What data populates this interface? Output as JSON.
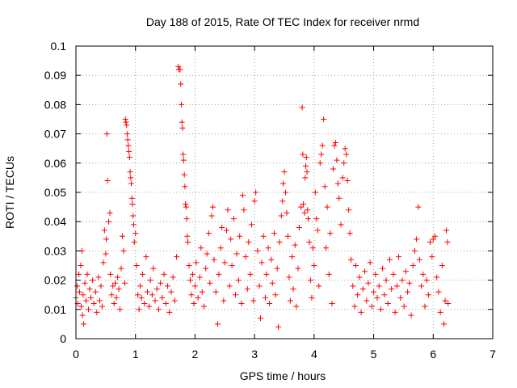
{
  "chart_data": {
    "type": "scatter",
    "title": "Day 188 of 2015, Rate Of TEC Index for receiver nrmd",
    "xlabel": "GPS time / hours",
    "ylabel": "ROTI / TECUs",
    "xlim": [
      0,
      7
    ],
    "ylim": [
      0,
      0.1
    ],
    "x_ticks": [
      "0",
      "1",
      "2",
      "3",
      "4",
      "5",
      "6",
      "7"
    ],
    "y_ticks": [
      "0",
      "0.01",
      "0.02",
      "0.03",
      "0.04",
      "0.05",
      "0.06",
      "0.07",
      "0.08",
      "0.09",
      "0.1"
    ],
    "grid": true,
    "legend": "none",
    "marker": "+",
    "color": "#ff0000",
    "series": [
      {
        "values_note_free": true,
        "points": [
          [
            0.0,
            0.014
          ],
          [
            0.02,
            0.018
          ],
          [
            0.03,
            0.012
          ],
          [
            0.05,
            0.022
          ],
          [
            0.06,
            0.016
          ],
          [
            0.08,
            0.025
          ],
          [
            0.09,
            0.011
          ],
          [
            0.1,
            0.03
          ],
          [
            0.11,
            0.008
          ],
          [
            0.12,
            0.015
          ],
          [
            0.13,
            0.005
          ],
          [
            0.15,
            0.019
          ],
          [
            0.17,
            0.013
          ],
          [
            0.19,
            0.022
          ],
          [
            0.21,
            0.01
          ],
          [
            0.23,
            0.017
          ],
          [
            0.25,
            0.014
          ],
          [
            0.28,
            0.02
          ],
          [
            0.3,
            0.012
          ],
          [
            0.33,
            0.016
          ],
          [
            0.35,
            0.009
          ],
          [
            0.38,
            0.021
          ],
          [
            0.4,
            0.013
          ],
          [
            0.42,
            0.018
          ],
          [
            0.44,
            0.011
          ],
          [
            0.46,
            0.026
          ],
          [
            0.48,
            0.037
          ],
          [
            0.5,
            0.029
          ],
          [
            0.51,
            0.034
          ],
          [
            0.52,
            0.07
          ],
          [
            0.53,
            0.054
          ],
          [
            0.55,
            0.04
          ],
          [
            0.57,
            0.043
          ],
          [
            0.58,
            0.022
          ],
          [
            0.6,
            0.015
          ],
          [
            0.62,
            0.018
          ],
          [
            0.64,
            0.012
          ],
          [
            0.66,
            0.019
          ],
          [
            0.68,
            0.014
          ],
          [
            0.7,
            0.021
          ],
          [
            0.72,
            0.017
          ],
          [
            0.74,
            0.01
          ],
          [
            0.76,
            0.024
          ],
          [
            0.78,
            0.035
          ],
          [
            0.8,
            0.03
          ],
          [
            0.82,
            0.019
          ],
          [
            0.83,
            0.075
          ],
          [
            0.84,
            0.074
          ],
          [
            0.85,
            0.073
          ],
          [
            0.86,
            0.07
          ],
          [
            0.87,
            0.068
          ],
          [
            0.88,
            0.066
          ],
          [
            0.89,
            0.064
          ],
          [
            0.9,
            0.062
          ],
          [
            0.91,
            0.057
          ],
          [
            0.92,
            0.055
          ],
          [
            0.93,
            0.053
          ],
          [
            0.94,
            0.048
          ],
          [
            0.95,
            0.046
          ],
          [
            0.96,
            0.042
          ],
          [
            0.97,
            0.039
          ],
          [
            0.98,
            0.033
          ],
          [
            1.0,
            0.036
          ],
          [
            1.02,
            0.025
          ],
          [
            1.04,
            0.015
          ],
          [
            1.06,
            0.01
          ],
          [
            1.08,
            0.018
          ],
          [
            1.1,
            0.014
          ],
          [
            1.12,
            0.022
          ],
          [
            1.15,
            0.012
          ],
          [
            1.18,
            0.028
          ],
          [
            1.2,
            0.016
          ],
          [
            1.23,
            0.011
          ],
          [
            1.25,
            0.02
          ],
          [
            1.28,
            0.015
          ],
          [
            1.3,
            0.024
          ],
          [
            1.33,
            0.013
          ],
          [
            1.36,
            0.017
          ],
          [
            1.39,
            0.01
          ],
          [
            1.42,
            0.019
          ],
          [
            1.45,
            0.014
          ],
          [
            1.48,
            0.022
          ],
          [
            1.51,
            0.012
          ],
          [
            1.54,
            0.018
          ],
          [
            1.57,
            0.009
          ],
          [
            1.6,
            0.016
          ],
          [
            1.63,
            0.021
          ],
          [
            1.66,
            0.013
          ],
          [
            1.69,
            0.028
          ],
          [
            1.72,
            0.093
          ],
          [
            1.73,
            0.092
          ],
          [
            1.75,
            0.092
          ],
          [
            1.76,
            0.087
          ],
          [
            1.77,
            0.08
          ],
          [
            1.78,
            0.074
          ],
          [
            1.79,
            0.072
          ],
          [
            1.8,
            0.063
          ],
          [
            1.81,
            0.061
          ],
          [
            1.82,
            0.056
          ],
          [
            1.83,
            0.052
          ],
          [
            1.84,
            0.046
          ],
          [
            1.85,
            0.045
          ],
          [
            1.86,
            0.041
          ],
          [
            1.87,
            0.035
          ],
          [
            1.88,
            0.033
          ],
          [
            1.9,
            0.025
          ],
          [
            1.92,
            0.02
          ],
          [
            1.94,
            0.015
          ],
          [
            1.96,
            0.022
          ],
          [
            1.98,
            0.012
          ],
          [
            2.0,
            0.018
          ],
          [
            2.02,
            0.026
          ],
          [
            2.05,
            0.014
          ],
          [
            2.08,
            0.021
          ],
          [
            2.1,
            0.031
          ],
          [
            2.12,
            0.016
          ],
          [
            2.15,
            0.011
          ],
          [
            2.18,
            0.024
          ],
          [
            2.2,
            0.029
          ],
          [
            2.23,
            0.036
          ],
          [
            2.25,
            0.019
          ],
          [
            2.28,
            0.042
          ],
          [
            2.3,
            0.045
          ],
          [
            2.32,
            0.027
          ],
          [
            2.35,
            0.016
          ],
          [
            2.38,
            0.005
          ],
          [
            2.4,
            0.022
          ],
          [
            2.43,
            0.031
          ],
          [
            2.45,
            0.038
          ],
          [
            2.48,
            0.013
          ],
          [
            2.5,
            0.026
          ],
          [
            2.53,
            0.037
          ],
          [
            2.55,
            0.044
          ],
          [
            2.58,
            0.018
          ],
          [
            2.6,
            0.034
          ],
          [
            2.62,
            0.025
          ],
          [
            2.65,
            0.041
          ],
          [
            2.68,
            0.015
          ],
          [
            2.7,
            0.029
          ],
          [
            2.73,
            0.02
          ],
          [
            2.75,
            0.035
          ],
          [
            2.78,
            0.012
          ],
          [
            2.8,
            0.049
          ],
          [
            2.82,
            0.044
          ],
          [
            2.85,
            0.028
          ],
          [
            2.88,
            0.017
          ],
          [
            2.9,
            0.033
          ],
          [
            2.93,
            0.022
          ],
          [
            2.95,
            0.039
          ],
          [
            2.98,
            0.013
          ],
          [
            3.0,
            0.047
          ],
          [
            3.02,
            0.05
          ],
          [
            3.05,
            0.03
          ],
          [
            3.08,
            0.018
          ],
          [
            3.1,
            0.007
          ],
          [
            3.12,
            0.026
          ],
          [
            3.15,
            0.035
          ],
          [
            3.18,
            0.014
          ],
          [
            3.2,
            0.022
          ],
          [
            3.23,
            0.031
          ],
          [
            3.25,
            0.012
          ],
          [
            3.28,
            0.027
          ],
          [
            3.3,
            0.019
          ],
          [
            3.33,
            0.036
          ],
          [
            3.35,
            0.015
          ],
          [
            3.38,
            0.024
          ],
          [
            3.4,
            0.004
          ],
          [
            3.42,
            0.033
          ],
          [
            3.45,
            0.042
          ],
          [
            3.47,
            0.047
          ],
          [
            3.48,
            0.053
          ],
          [
            3.5,
            0.057
          ],
          [
            3.52,
            0.05
          ],
          [
            3.54,
            0.043
          ],
          [
            3.56,
            0.035
          ],
          [
            3.58,
            0.021
          ],
          [
            3.6,
            0.013
          ],
          [
            3.63,
            0.028
          ],
          [
            3.65,
            0.017
          ],
          [
            3.68,
            0.032
          ],
          [
            3.7,
            0.011
          ],
          [
            3.73,
            0.024
          ],
          [
            3.75,
            0.038
          ],
          [
            3.78,
            0.045
          ],
          [
            3.8,
            0.079
          ],
          [
            3.81,
            0.063
          ],
          [
            3.82,
            0.046
          ],
          [
            3.84,
            0.043
          ],
          [
            3.85,
            0.055
          ],
          [
            3.86,
            0.059
          ],
          [
            3.87,
            0.062
          ],
          [
            3.88,
            0.057
          ],
          [
            3.89,
            0.044
          ],
          [
            3.9,
            0.041
          ],
          [
            3.92,
            0.033
          ],
          [
            3.94,
            0.02
          ],
          [
            3.96,
            0.014
          ],
          [
            3.98,
            0.031
          ],
          [
            4.0,
            0.025
          ],
          [
            4.02,
            0.05
          ],
          [
            4.04,
            0.041
          ],
          [
            4.06,
            0.037
          ],
          [
            4.08,
            0.018
          ],
          [
            4.1,
            0.06
          ],
          [
            4.12,
            0.063
          ],
          [
            4.14,
            0.066
          ],
          [
            4.16,
            0.075
          ],
          [
            4.18,
            0.052
          ],
          [
            4.2,
            0.031
          ],
          [
            4.22,
            0.045
          ],
          [
            4.25,
            0.022
          ],
          [
            4.27,
            0.036
          ],
          [
            4.3,
            0.012
          ],
          [
            4.32,
            0.058
          ],
          [
            4.34,
            0.066
          ],
          [
            4.36,
            0.067
          ],
          [
            4.38,
            0.061
          ],
          [
            4.4,
            0.053
          ],
          [
            4.42,
            0.048
          ],
          [
            4.45,
            0.039
          ],
          [
            4.48,
            0.055
          ],
          [
            4.5,
            0.06
          ],
          [
            4.52,
            0.065
          ],
          [
            4.54,
            0.063
          ],
          [
            4.56,
            0.054
          ],
          [
            4.58,
            0.044
          ],
          [
            4.6,
            0.036
          ],
          [
            4.62,
            0.027
          ],
          [
            4.65,
            0.018
          ],
          [
            4.68,
            0.011
          ],
          [
            4.7,
            0.025
          ],
          [
            4.73,
            0.015
          ],
          [
            4.76,
            0.021
          ],
          [
            4.79,
            0.009
          ],
          [
            4.82,
            0.017
          ],
          [
            4.85,
            0.023
          ],
          [
            4.88,
            0.013
          ],
          [
            4.91,
            0.019
          ],
          [
            4.94,
            0.026
          ],
          [
            4.97,
            0.011
          ],
          [
            5.0,
            0.016
          ],
          [
            5.03,
            0.022
          ],
          [
            5.06,
            0.014
          ],
          [
            5.09,
            0.018
          ],
          [
            5.12,
            0.01
          ],
          [
            5.15,
            0.024
          ],
          [
            5.18,
            0.015
          ],
          [
            5.21,
            0.02
          ],
          [
            5.24,
            0.012
          ],
          [
            5.27,
            0.027
          ],
          [
            5.3,
            0.017
          ],
          [
            5.33,
            0.022
          ],
          [
            5.36,
            0.009
          ],
          [
            5.39,
            0.018
          ],
          [
            5.42,
            0.028
          ],
          [
            5.45,
            0.014
          ],
          [
            5.48,
            0.02
          ],
          [
            5.51,
            0.011
          ],
          [
            5.54,
            0.023
          ],
          [
            5.57,
            0.016
          ],
          [
            5.6,
            0.019
          ],
          [
            5.63,
            0.008
          ],
          [
            5.66,
            0.025
          ],
          [
            5.69,
            0.03
          ],
          [
            5.72,
            0.034
          ],
          [
            5.75,
            0.045
          ],
          [
            5.77,
            0.027
          ],
          [
            5.8,
            0.018
          ],
          [
            5.83,
            0.022
          ],
          [
            5.86,
            0.011
          ],
          [
            5.89,
            0.02
          ],
          [
            5.92,
            0.015
          ],
          [
            5.95,
            0.033
          ],
          [
            5.98,
            0.028
          ],
          [
            6.0,
            0.034
          ],
          [
            6.03,
            0.035
          ],
          [
            6.06,
            0.021
          ],
          [
            6.09,
            0.016
          ],
          [
            6.12,
            0.009
          ],
          [
            6.15,
            0.025
          ],
          [
            6.18,
            0.005
          ],
          [
            6.2,
            0.013
          ],
          [
            6.22,
            0.037
          ],
          [
            6.24,
            0.033
          ],
          [
            6.25,
            0.012
          ]
        ]
      }
    ]
  }
}
